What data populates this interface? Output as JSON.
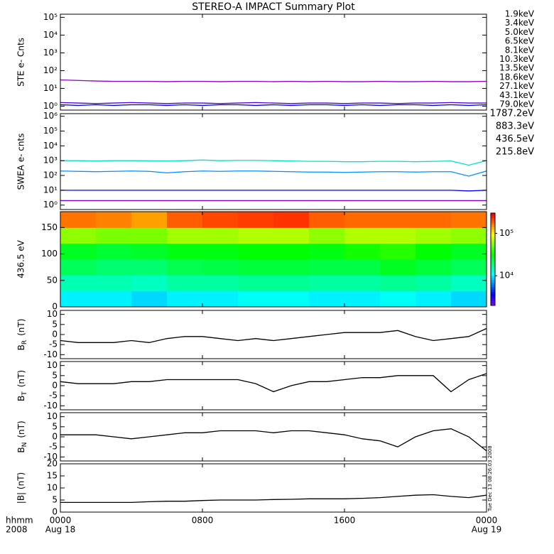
{
  "title": "STEREO-A IMPACT Summary Plot",
  "timestamp": "Tue Dec 13 08:26:03 2008",
  "x_axis": {
    "xlim": [
      0,
      24
    ],
    "xticks": [
      {
        "value": 0,
        "label": "0000"
      },
      {
        "value": 8,
        "label": "0800"
      },
      {
        "value": 16,
        "label": "1600"
      },
      {
        "value": 24,
        "label": "0000"
      }
    ],
    "dates": [
      {
        "value": 0,
        "label": "Aug 18"
      },
      {
        "value": 24,
        "label": "Aug 19"
      }
    ],
    "unit_labels": [
      "hhmm",
      "2008"
    ]
  },
  "chart_data": [
    {
      "type": "line",
      "ylabel": "STE e- Cnts",
      "log": true,
      "ylim": [
        0.6,
        150000
      ],
      "yticks": [
        {
          "value": 1,
          "label": "10⁰"
        },
        {
          "value": 10,
          "label": "10¹"
        },
        {
          "value": 100,
          "label": "10²"
        },
        {
          "value": 1000,
          "label": "10³"
        },
        {
          "value": 10000,
          "label": "10⁴"
        },
        {
          "value": 100000,
          "label": "10⁵"
        }
      ],
      "x": [
        0,
        1,
        2,
        3,
        4,
        5,
        6,
        7,
        8,
        9,
        10,
        11,
        12,
        13,
        14,
        15,
        16,
        17,
        18,
        19,
        20,
        21,
        22,
        23,
        24
      ],
      "series": [
        {
          "name": "1.9keV",
          "color": "#8a00c8",
          "values": [
            30,
            28,
            26,
            25,
            25,
            25,
            24,
            25,
            25,
            24,
            25,
            25,
            24,
            25,
            24,
            25,
            24,
            24,
            25,
            24,
            24,
            25,
            24,
            24,
            25
          ]
        },
        {
          "name": "3.4keV",
          "color": "#5000e0",
          "values": [
            1.6,
            1.5,
            1.4,
            1.5,
            1.6,
            1.5,
            1.4,
            1.5,
            1.5,
            1.4,
            1.5,
            1.6,
            1.5,
            1.4,
            1.5,
            1.5,
            1.4,
            1.5,
            1.5,
            1.4,
            1.5,
            1.5,
            1.6,
            1.5,
            1.5
          ]
        },
        {
          "name": "5.0keV",
          "color": "#0000ff",
          "values": [
            1.2,
            1.1,
            1.2,
            1.1,
            1.2,
            1.2,
            1.1,
            1.2,
            1.1,
            1.2,
            1.2,
            1.1,
            1.2,
            1.1,
            1.2,
            1.2,
            1.1,
            1.2,
            1.1,
            1.2,
            1.2,
            1.1,
            1.2,
            1.1,
            1.2
          ]
        },
        {
          "name": "6.5keV",
          "color": "#00a0ff",
          "values": [
            null,
            null,
            null,
            null,
            null,
            null,
            null,
            null,
            null,
            null,
            null,
            null,
            null,
            null,
            null,
            null,
            null,
            null,
            null,
            null,
            null,
            null,
            null,
            null,
            null
          ]
        },
        {
          "name": "8.1keV",
          "color": "#00d8d8",
          "values": [
            null,
            null,
            null,
            null,
            null,
            null,
            null,
            null,
            null,
            null,
            null,
            null,
            null,
            null,
            null,
            null,
            null,
            null,
            null,
            null,
            null,
            null,
            null,
            null,
            null
          ]
        },
        {
          "name": "10.3keV",
          "color": "#00c800",
          "values": [
            null,
            null,
            null,
            null,
            null,
            null,
            null,
            null,
            null,
            null,
            null,
            null,
            null,
            null,
            null,
            null,
            null,
            null,
            null,
            null,
            null,
            null,
            null,
            null,
            null
          ]
        },
        {
          "name": "13.5keV",
          "color": "#50d000",
          "values": [
            null,
            null,
            null,
            null,
            null,
            null,
            null,
            null,
            null,
            null,
            null,
            null,
            null,
            null,
            null,
            null,
            null,
            null,
            null,
            null,
            null,
            null,
            null,
            null,
            null
          ]
        },
        {
          "name": "18.6keV",
          "color": "#b0d800",
          "values": [
            null,
            null,
            null,
            null,
            null,
            null,
            null,
            null,
            null,
            null,
            null,
            null,
            null,
            null,
            null,
            null,
            null,
            null,
            null,
            null,
            null,
            null,
            null,
            null,
            null
          ]
        },
        {
          "name": "27.1keV",
          "color": "#f0c800",
          "values": [
            null,
            null,
            null,
            null,
            null,
            null,
            null,
            null,
            null,
            null,
            null,
            null,
            null,
            null,
            null,
            null,
            null,
            null,
            null,
            null,
            null,
            null,
            null,
            null,
            null
          ]
        },
        {
          "name": "43.1keV",
          "color": "#ff8c00",
          "values": [
            null,
            null,
            null,
            null,
            null,
            null,
            null,
            null,
            null,
            null,
            null,
            null,
            null,
            null,
            null,
            null,
            null,
            null,
            null,
            null,
            null,
            null,
            null,
            null,
            null
          ]
        },
        {
          "name": "79.0keV",
          "color": "#ff1e00",
          "values": [
            null,
            null,
            null,
            null,
            null,
            null,
            null,
            null,
            null,
            null,
            null,
            null,
            null,
            null,
            null,
            null,
            null,
            null,
            null,
            null,
            null,
            null,
            null,
            null,
            null
          ]
        }
      ]
    },
    {
      "type": "line",
      "ylabel": "SWEA e- cnts",
      "log": true,
      "ylim": [
        0.5,
        1500000
      ],
      "yticks": [
        {
          "value": 1,
          "label": "10⁰"
        },
        {
          "value": 10,
          "label": "10¹"
        },
        {
          "value": 100,
          "label": "10²"
        },
        {
          "value": 1000,
          "label": "10³"
        },
        {
          "value": 10000,
          "label": "10⁴"
        },
        {
          "value": 100000,
          "label": "10⁵"
        },
        {
          "value": 1000000,
          "label": "10⁶"
        }
      ],
      "x": [
        0,
        1,
        2,
        3,
        4,
        5,
        6,
        7,
        8,
        9,
        10,
        11,
        12,
        13,
        14,
        15,
        16,
        17,
        18,
        19,
        20,
        21,
        22,
        23,
        24
      ],
      "series": [
        {
          "name": "1787.2eV",
          "color": "#8000d0",
          "values": [
            2,
            2,
            2,
            2,
            2,
            2,
            2,
            2,
            2,
            2,
            2,
            2,
            2,
            2,
            2,
            2,
            2,
            2,
            2,
            2,
            2,
            2,
            2,
            2,
            2
          ]
        },
        {
          "name": "883.3eV",
          "color": "#0000ff",
          "values": [
            10,
            10,
            10,
            10,
            10,
            10,
            10,
            10,
            10,
            10,
            10,
            10,
            10,
            10,
            10,
            10,
            10,
            10,
            10,
            10,
            10,
            10,
            10,
            9,
            10
          ]
        },
        {
          "name": "436.5eV",
          "color": "#0090ff",
          "values": [
            200,
            190,
            180,
            190,
            200,
            190,
            150,
            180,
            200,
            190,
            200,
            200,
            190,
            180,
            170,
            170,
            160,
            170,
            180,
            180,
            170,
            180,
            180,
            90,
            200
          ]
        },
        {
          "name": "215.8eV",
          "color": "#00e0d0",
          "values": [
            1000,
            1000,
            950,
            1000,
            1000,
            980,
            950,
            1000,
            1100,
            1000,
            1050,
            1050,
            1000,
            950,
            900,
            900,
            850,
            850,
            900,
            900,
            850,
            900,
            950,
            500,
            1000
          ]
        }
      ]
    },
    {
      "type": "heatmap",
      "ylabel": "436.5 eV",
      "ylim": [
        0,
        180
      ],
      "yticks": [
        0,
        50,
        100,
        150
      ],
      "x": [
        0,
        2,
        4,
        6,
        8,
        10,
        12,
        14,
        16,
        18,
        20,
        22,
        24
      ],
      "y": [
        0,
        30,
        60,
        90,
        120,
        150,
        180
      ],
      "values": [
        [
          10000,
          15000,
          22000,
          28000,
          60000,
          180000
        ],
        [
          10000,
          15000,
          20000,
          26000,
          55000,
          170000
        ],
        [
          9000,
          14000,
          20000,
          27000,
          55000,
          150000
        ],
        [
          10000,
          16000,
          23000,
          30000,
          65000,
          200000
        ],
        [
          10000,
          16000,
          24000,
          30000,
          65000,
          220000
        ],
        [
          11000,
          17000,
          25000,
          32000,
          70000,
          230000
        ],
        [
          11000,
          17000,
          25000,
          32000,
          70000,
          240000
        ],
        [
          10000,
          16000,
          24000,
          30000,
          60000,
          200000
        ],
        [
          10000,
          16000,
          24000,
          35000,
          70000,
          190000
        ],
        [
          11000,
          17000,
          28000,
          38000,
          70000,
          190000
        ],
        [
          10000,
          16000,
          25000,
          32000,
          65000,
          190000
        ],
        [
          9000,
          14000,
          22000,
          28000,
          60000,
          180000
        ]
      ],
      "zlog": true,
      "zlim": [
        2000,
        300000
      ],
      "zticks": [
        {
          "value": 10000,
          "label": "10⁴"
        },
        {
          "value": 100000,
          "label": "10⁵"
        }
      ]
    },
    {
      "type": "line",
      "ylabel": [
        "B",
        "R",
        "(nT)"
      ],
      "ylim": [
        -12,
        12
      ],
      "yticks": [
        -10,
        -5,
        0,
        5,
        10
      ],
      "x": [
        0,
        1,
        2,
        3,
        4,
        5,
        6,
        7,
        8,
        9,
        10,
        11,
        12,
        13,
        14,
        15,
        16,
        17,
        18,
        19,
        20,
        21,
        22,
        23,
        24
      ],
      "series": [
        {
          "name": "BR",
          "color": "#000000",
          "values": [
            -3,
            -4,
            -4,
            -4,
            -3,
            -4,
            -2,
            -1,
            -1,
            -2,
            -3,
            -2,
            -3,
            -2,
            -1,
            0,
            1,
            1,
            1,
            2,
            -1,
            -3,
            -2,
            -1,
            3
          ]
        }
      ]
    },
    {
      "type": "line",
      "ylabel": [
        "B",
        "T",
        "(nT)"
      ],
      "ylim": [
        -12,
        12
      ],
      "yticks": [
        -10,
        -5,
        0,
        5,
        10
      ],
      "x": [
        0,
        1,
        2,
        3,
        4,
        5,
        6,
        7,
        8,
        9,
        10,
        11,
        12,
        13,
        14,
        15,
        16,
        17,
        18,
        19,
        20,
        21,
        22,
        23,
        24
      ],
      "series": [
        {
          "name": "BT",
          "color": "#000000",
          "values": [
            2,
            1,
            1,
            1,
            2,
            2,
            3,
            3,
            3,
            3,
            3,
            1,
            -3,
            0,
            2,
            2,
            3,
            4,
            4,
            5,
            5,
            5,
            -3,
            3,
            6
          ]
        }
      ]
    },
    {
      "type": "line",
      "ylabel": [
        "B",
        "N",
        "(nT)"
      ],
      "ylim": [
        -12,
        12
      ],
      "yticks": [
        -10,
        -5,
        0,
        5,
        10
      ],
      "x": [
        0,
        1,
        2,
        3,
        4,
        5,
        6,
        7,
        8,
        9,
        10,
        11,
        12,
        13,
        14,
        15,
        16,
        17,
        18,
        19,
        20,
        21,
        22,
        23,
        24
      ],
      "series": [
        {
          "name": "BN",
          "color": "#000000",
          "values": [
            1,
            1,
            1,
            0,
            -1,
            0,
            1,
            2,
            2,
            3,
            3,
            3,
            2,
            3,
            3,
            2,
            1,
            -1,
            -2,
            -5,
            0,
            3,
            4,
            0,
            -7
          ]
        }
      ]
    },
    {
      "type": "line",
      "ylabel": "|B| (nT)",
      "ylim": [
        0,
        20
      ],
      "yticks": [
        0,
        5,
        10,
        15,
        20
      ],
      "x": [
        0,
        1,
        2,
        3,
        4,
        5,
        6,
        7,
        8,
        9,
        10,
        11,
        12,
        13,
        14,
        15,
        16,
        17,
        18,
        19,
        20,
        21,
        22,
        23,
        24
      ],
      "series": [
        {
          "name": "B",
          "color": "#000000",
          "values": [
            4,
            4,
            4,
            4,
            4,
            4.3,
            4.5,
            4.5,
            4.8,
            5,
            5,
            5,
            5.2,
            5.3,
            5.5,
            5.5,
            5.5,
            5.7,
            6,
            6.5,
            7,
            7.2,
            6.5,
            6,
            7
          ]
        }
      ]
    }
  ]
}
